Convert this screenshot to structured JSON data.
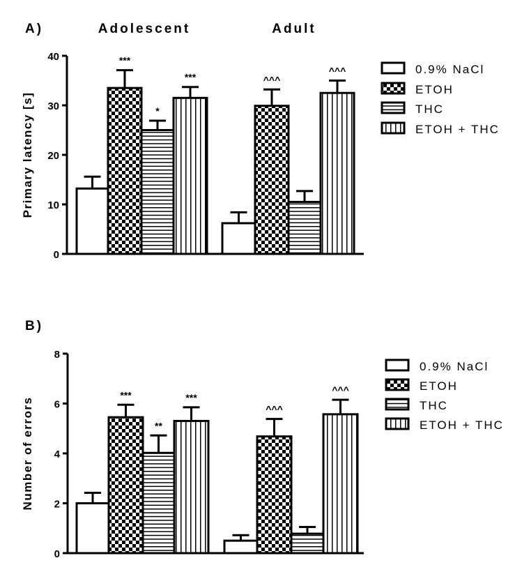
{
  "chart_data": [
    {
      "type": "bar",
      "panel_label": "A)",
      "group_titles": [
        "Adolescent",
        "Adult"
      ],
      "groups": [
        "Adolescent",
        "Adult"
      ],
      "ylabel": "Primary latency [s]",
      "ylim": [
        0,
        40
      ],
      "yticks": [
        "0",
        "10",
        "20",
        "30",
        "40"
      ],
      "legend_position": "right",
      "series": [
        {
          "name": "0.9% NaCl",
          "pattern": "empty",
          "values": [
            13.2,
            6.2
          ],
          "error_upper": [
            15.6,
            8.4
          ],
          "annotations": [
            "",
            ""
          ]
        },
        {
          "name": "ETOH",
          "pattern": "checker",
          "values": [
            33.5,
            29.9
          ],
          "error_upper": [
            37.1,
            33.2
          ],
          "annotations": [
            "***",
            "^^^"
          ]
        },
        {
          "name": "THC",
          "pattern": "horizontal-lines",
          "values": [
            25.0,
            10.5
          ],
          "error_upper": [
            26.9,
            12.7
          ],
          "annotations": [
            "*",
            ""
          ]
        },
        {
          "name": "ETOH + THC",
          "pattern": "vertical-lines",
          "values": [
            31.5,
            32.5
          ],
          "error_upper": [
            33.7,
            35.0
          ],
          "annotations": [
            "***",
            "^^^"
          ]
        }
      ]
    },
    {
      "type": "bar",
      "panel_label": "B)",
      "group_titles": [],
      "groups": [
        "Adolescent",
        "Adult"
      ],
      "ylabel": "Number of errors",
      "ylim": [
        0,
        8
      ],
      "yticks": [
        "0",
        "2",
        "4",
        "6",
        "8"
      ],
      "legend_position": "right",
      "series": [
        {
          "name": "0.9% NaCl",
          "pattern": "empty",
          "values": [
            2.0,
            0.5
          ],
          "error_upper": [
            2.42,
            0.72
          ],
          "annotations": [
            "",
            ""
          ]
        },
        {
          "name": "ETOH",
          "pattern": "checker",
          "values": [
            5.45,
            4.68
          ],
          "error_upper": [
            5.95,
            5.38
          ],
          "annotations": [
            "***",
            "^^^"
          ]
        },
        {
          "name": "THC",
          "pattern": "horizontal-lines",
          "values": [
            4.02,
            0.78
          ],
          "error_upper": [
            4.72,
            1.05
          ],
          "annotations": [
            "**",
            ""
          ]
        },
        {
          "name": "ETOH + THC",
          "pattern": "vertical-lines",
          "values": [
            5.3,
            5.57
          ],
          "error_upper": [
            5.85,
            6.15
          ],
          "annotations": [
            "***",
            "^^^"
          ]
        }
      ]
    }
  ]
}
